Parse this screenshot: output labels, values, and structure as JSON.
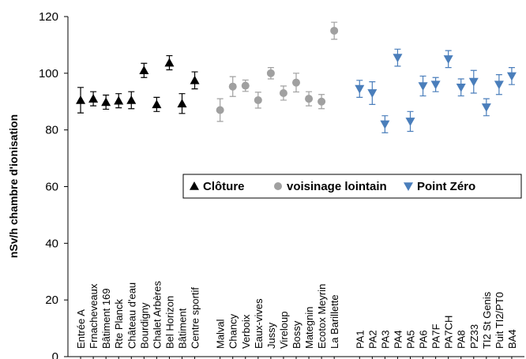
{
  "chart_data": {
    "type": "scatter",
    "y_label": "nSv/h chambre d'ionisation",
    "categories": [
      "Entrée A",
      "Frnacheveaux",
      "Bâtiment 169",
      "Rte Planck",
      "Château d'eau",
      "Bourdigny",
      "Chalet Arbères",
      "Bel Horizon",
      "Bâtiment",
      "Centre sportif",
      null,
      "Malval",
      "Chancy",
      "Verboix",
      "Eaux-vives",
      "Jussy",
      "Vireloup",
      "Bossy",
      "Mategnin",
      "Ecotox Meyrin",
      "La Barillette",
      null,
      "PA1",
      "PA2",
      "PA3",
      "PA4",
      "PA5",
      "PA6",
      "PA7F",
      "PA7CH",
      "PA8",
      "PZ33",
      "TI2 St Genis",
      "Puit TI2/PT0",
      "BA4"
    ],
    "series": [
      {
        "name": "Clôture",
        "color": "#000000",
        "marker": "triangle-up",
        "values": [
          90.5,
          91,
          89.8,
          90.3,
          90.5,
          101,
          89,
          103.7,
          89.3,
          97.5,
          null,
          null,
          null,
          null,
          null,
          null,
          null,
          null,
          null,
          null,
          null,
          null,
          null,
          null,
          null,
          null,
          null,
          null,
          null,
          null,
          null,
          null,
          null,
          null,
          null
        ],
        "errors": [
          4.5,
          2.5,
          2.5,
          2.5,
          3,
          2.5,
          2.5,
          2.5,
          3.5,
          3,
          null,
          null,
          null,
          null,
          null,
          null,
          null,
          null,
          null,
          null,
          null,
          null,
          null,
          null,
          null,
          null,
          null,
          null,
          null,
          null,
          null,
          null,
          null,
          null,
          null
        ]
      },
      {
        "name": "voisinage lointain",
        "color": "#a0a0a0",
        "marker": "circle",
        "values": [
          null,
          null,
          null,
          null,
          null,
          null,
          null,
          null,
          null,
          null,
          null,
          87,
          95.3,
          95.6,
          90.5,
          100,
          93,
          96.7,
          91,
          90,
          115,
          null,
          null,
          null,
          null,
          null,
          null,
          null,
          null,
          null,
          null,
          null,
          null,
          null,
          null
        ],
        "errors": [
          null,
          null,
          null,
          null,
          null,
          null,
          null,
          null,
          null,
          null,
          null,
          4,
          3.5,
          2,
          2.8,
          2,
          2.5,
          3.3,
          2.5,
          2.5,
          3,
          null,
          null,
          null,
          null,
          null,
          null,
          null,
          null,
          null,
          null,
          null,
          null,
          null,
          null
        ]
      },
      {
        "name": "Point Zéro",
        "color": "#4a7ebb",
        "marker": "triangle-down",
        "values": [
          null,
          null,
          null,
          null,
          null,
          null,
          null,
          null,
          null,
          null,
          null,
          null,
          null,
          null,
          null,
          null,
          null,
          null,
          null,
          null,
          null,
          null,
          94.5,
          93,
          82,
          105.5,
          83,
          95.5,
          96,
          105,
          95,
          97,
          88,
          96,
          99
        ],
        "errors": [
          null,
          null,
          null,
          null,
          null,
          null,
          null,
          null,
          null,
          null,
          null,
          null,
          null,
          null,
          null,
          null,
          null,
          null,
          null,
          null,
          null,
          null,
          3,
          4,
          3,
          3,
          3.5,
          3.5,
          2.5,
          3,
          3,
          4,
          3,
          3.5,
          3
        ]
      }
    ],
    "ylim": [
      0,
      120
    ],
    "yticks": [
      0,
      20,
      40,
      60,
      80,
      100,
      120
    ],
    "legend": "right"
  }
}
